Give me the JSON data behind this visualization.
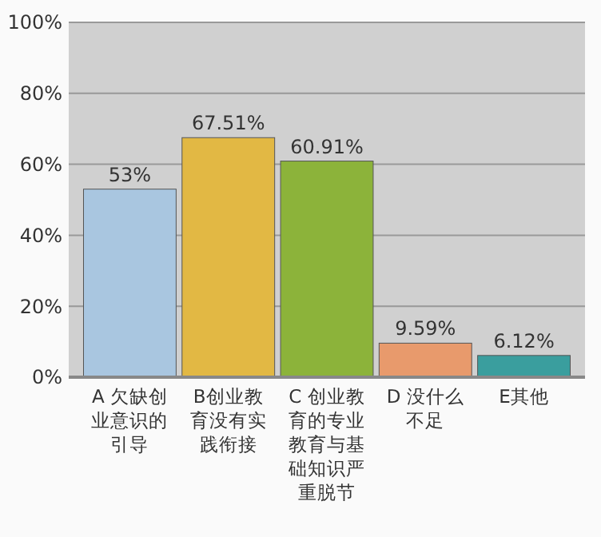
{
  "chart_data": {
    "type": "bar",
    "categories": [
      "A 欠缺创业意识的引导",
      "B创业教育没有实践衔接",
      "C 创业教育的专业教育与基础知识严重脱节",
      "D 没什么不足",
      "E其他"
    ],
    "values": [
      53,
      67.51,
      60.91,
      9.59,
      6.12
    ],
    "value_labels": [
      "53%",
      "67.51%",
      "60.91%",
      "9.59%",
      "6.12%"
    ],
    "colors": [
      "#a9c6e0",
      "#e2b844",
      "#8cb33a",
      "#e89a6c",
      "#3a9e9e"
    ],
    "ylim": [
      0,
      100
    ],
    "yticks": [
      {
        "value": 0,
        "label": "0%"
      },
      {
        "value": 20,
        "label": "20%"
      },
      {
        "value": 40,
        "label": "40%"
      },
      {
        "value": 60,
        "label": "60%"
      },
      {
        "value": 80,
        "label": "80%"
      },
      {
        "value": 100,
        "label": "100%"
      }
    ],
    "grid": true
  }
}
